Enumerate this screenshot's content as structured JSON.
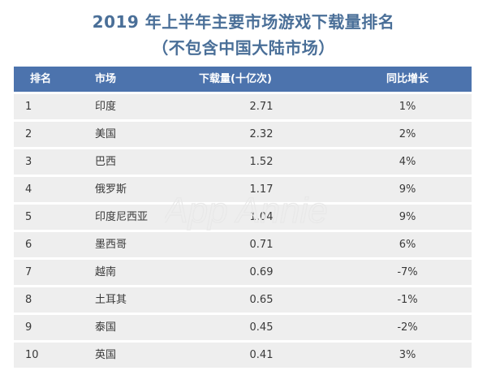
{
  "title_line1": "2019 年上半年主要市场游戏下载量排名",
  "title_line2": "（不包含中国大陆市场）",
  "headers": {
    "rank": "排名",
    "market": "市场",
    "downloads": "下载量(十亿次)",
    "yoy": "同比增长"
  },
  "rows": [
    {
      "rank": "1",
      "market": "印度",
      "downloads": "2.71",
      "yoy": "1%"
    },
    {
      "rank": "2",
      "market": "美国",
      "downloads": "2.32",
      "yoy": "2%"
    },
    {
      "rank": "3",
      "market": "巴西",
      "downloads": "1.52",
      "yoy": "4%"
    },
    {
      "rank": "4",
      "market": "俄罗斯",
      "downloads": "1.17",
      "yoy": "9%"
    },
    {
      "rank": "5",
      "market": "印度尼西亚",
      "downloads": "1.04",
      "yoy": "9%"
    },
    {
      "rank": "6",
      "market": "墨西哥",
      "downloads": "0.71",
      "yoy": "6%"
    },
    {
      "rank": "7",
      "market": "越南",
      "downloads": "0.69",
      "yoy": "-7%"
    },
    {
      "rank": "8",
      "market": "土耳其",
      "downloads": "0.65",
      "yoy": "-1%"
    },
    {
      "rank": "9",
      "market": "泰国",
      "downloads": "0.45",
      "yoy": "-2%"
    },
    {
      "rank": "10",
      "market": "英国",
      "downloads": "0.41",
      "yoy": "3%"
    }
  ],
  "watermark_text": "App Annie",
  "colors": {
    "title": "#4a6f98",
    "header_bg": "#4c73ad",
    "row_bg": "#eeeeee"
  }
}
